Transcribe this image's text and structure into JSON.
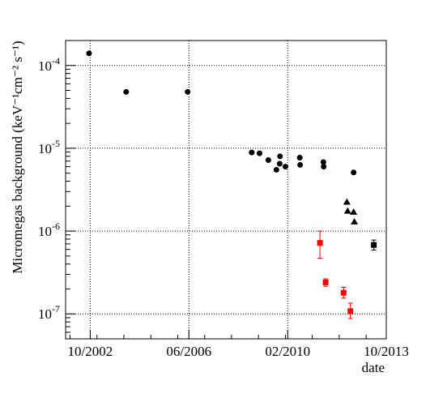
{
  "chart_data": {
    "type": "scatter",
    "x_axis": {
      "label": "date",
      "range": [
        "2001-11-01",
        "2013-10-01"
      ],
      "ticks": [
        {
          "date": "2002-10-01",
          "label": "10/2002"
        },
        {
          "date": "2006-06-01",
          "label": "06/2006"
        },
        {
          "date": "2010-02-01",
          "label": "02/2010"
        },
        {
          "date": "2013-10-01",
          "label": "10/2013"
        }
      ],
      "grid": true
    },
    "y_axis": {
      "label": "Micromegas background (keV⁻¹cm⁻² s⁻¹)",
      "scale": "log",
      "range": [
        5e-08,
        0.0002
      ],
      "ticks": [
        {
          "value": 1e-07,
          "base": "10",
          "exp": "-7"
        },
        {
          "value": 1e-06,
          "base": "10",
          "exp": "-6"
        },
        {
          "value": 1e-05,
          "base": "10",
          "exp": "-5"
        },
        {
          "value": 0.0001,
          "base": "10",
          "exp": "-4"
        }
      ],
      "grid": true
    },
    "series": [
      {
        "marker": "circle",
        "color": "#000000",
        "points": [
          {
            "date": "2002-09-15",
            "y": 0.00014
          },
          {
            "date": "2004-02-01",
            "y": 4.8e-05
          },
          {
            "date": "2006-05-15",
            "y": 4.8e-05
          },
          {
            "date": "2008-10-01",
            "y": 8.9e-06
          },
          {
            "date": "2009-01-15",
            "y": 8.7e-06
          },
          {
            "date": "2009-05-15",
            "y": 7.2e-06
          },
          {
            "date": "2009-09-01",
            "y": 5.5e-06
          },
          {
            "date": "2009-10-15",
            "y": 6.5e-06
          },
          {
            "date": "2009-10-20",
            "y": 8e-06
          },
          {
            "date": "2010-01-01",
            "y": 6e-06
          },
          {
            "date": "2010-07-15",
            "y": 7.7e-06
          },
          {
            "date": "2010-07-20",
            "y": 6.3e-06
          },
          {
            "date": "2011-06-01",
            "y": 6.8e-06
          },
          {
            "date": "2011-06-05",
            "y": 6e-06
          },
          {
            "date": "2012-07-15",
            "y": 5.1e-06
          }
        ]
      },
      {
        "marker": "triangle",
        "color": "#000000",
        "points": [
          {
            "date": "2012-04-15",
            "y": 2.25e-06
          },
          {
            "date": "2012-04-25",
            "y": 1.75e-06
          },
          {
            "date": "2012-07-15",
            "y": 1.7e-06
          },
          {
            "date": "2012-07-25",
            "y": 1.3e-06
          }
        ]
      },
      {
        "marker": "square",
        "color": "#ff0000",
        "points": [
          {
            "date": "2011-04-15",
            "y": 7.2e-07,
            "err_low": 4.7e-07,
            "err_high": 1e-06
          },
          {
            "date": "2011-07-01",
            "y": 2.4e-07,
            "err_low": 2.15e-07,
            "err_high": 2.65e-07
          },
          {
            "date": "2012-03-01",
            "y": 1.8e-07,
            "err_low": 1.55e-07,
            "err_high": 2.1e-07
          },
          {
            "date": "2012-06-01",
            "y": 1.08e-07,
            "err_low": 8.8e-08,
            "err_high": 1.35e-07
          }
        ]
      },
      {
        "marker": "square",
        "color": "#000000",
        "points": [
          {
            "date": "2013-04-15",
            "y": 6.8e-07,
            "err_low": 5.9e-07,
            "err_high": 7.8e-07
          }
        ]
      }
    ]
  }
}
